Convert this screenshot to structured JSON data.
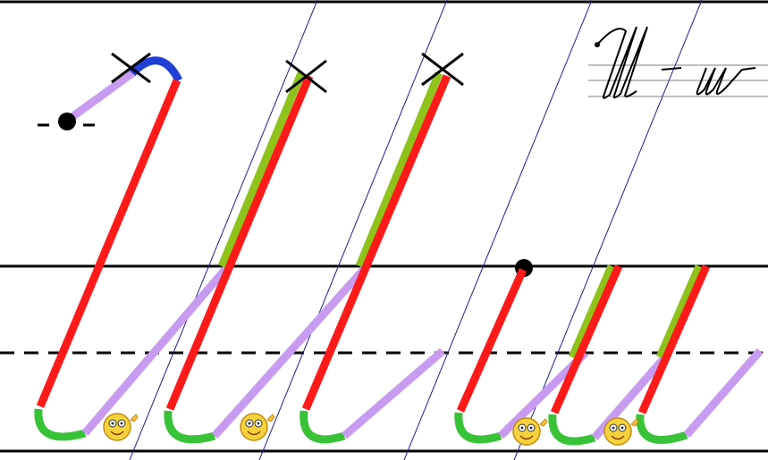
{
  "app": {
    "title": "",
    "description": ""
  },
  "exercise": {
    "sample": {
      "upper_letter": "Ш",
      "lower_letter": "ш"
    },
    "stroke_colors": {
      "intro_hook": "#c79cf0",
      "top_loop": "#1f3fd6",
      "main_stroke": "#ff1a1a",
      "bottom_turn": "#38c238",
      "connector": "#c79cf0",
      "retrace": "#8fc21a",
      "guide_lines": "#1f1f8f",
      "baseline_lines": "#000000"
    },
    "markers": {
      "start_dot": "start-dot",
      "stop_cross": "stop-cross",
      "smiley": "smiley-face"
    }
  }
}
